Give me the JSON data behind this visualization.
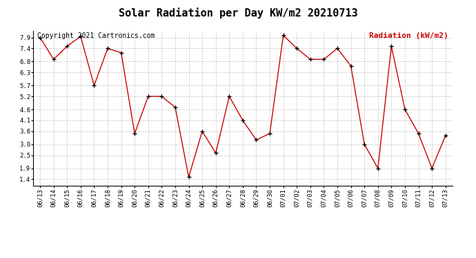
{
  "title": "Solar Radiation per Day KW/m2 20210713",
  "copyright_text": "Copyright 2021 Cartronics.com",
  "legend_label": "Radiation (kW/m2)",
  "dates": [
    "06/13",
    "06/14",
    "06/15",
    "06/16",
    "06/17",
    "06/18",
    "06/19",
    "06/20",
    "06/21",
    "06/22",
    "06/23",
    "06/24",
    "06/25",
    "06/26",
    "06/27",
    "06/28",
    "06/29",
    "06/30",
    "07/01",
    "07/02",
    "07/03",
    "07/04",
    "07/05",
    "07/06",
    "07/07",
    "07/08",
    "07/09",
    "07/10",
    "07/11",
    "07/12",
    "07/13"
  ],
  "values": [
    7.9,
    6.9,
    7.5,
    7.95,
    5.7,
    7.4,
    7.2,
    3.5,
    5.2,
    5.2,
    4.7,
    1.5,
    3.6,
    2.6,
    5.2,
    4.1,
    3.2,
    3.5,
    8.0,
    7.4,
    6.9,
    6.9,
    7.4,
    6.6,
    3.0,
    1.9,
    7.5,
    4.6,
    3.5,
    1.9,
    3.4
  ],
  "line_color": "#cc0000",
  "marker_color": "#000000",
  "background_color": "#ffffff",
  "grid_color": "#aaaaaa",
  "yticks": [
    1.4,
    1.9,
    2.5,
    3.0,
    3.6,
    4.1,
    4.6,
    5.2,
    5.7,
    6.3,
    6.8,
    7.4,
    7.9
  ],
  "ylim": [
    1.1,
    8.2
  ],
  "title_fontsize": 11,
  "copyright_fontsize": 7,
  "legend_fontsize": 8,
  "tick_fontsize": 6.5
}
